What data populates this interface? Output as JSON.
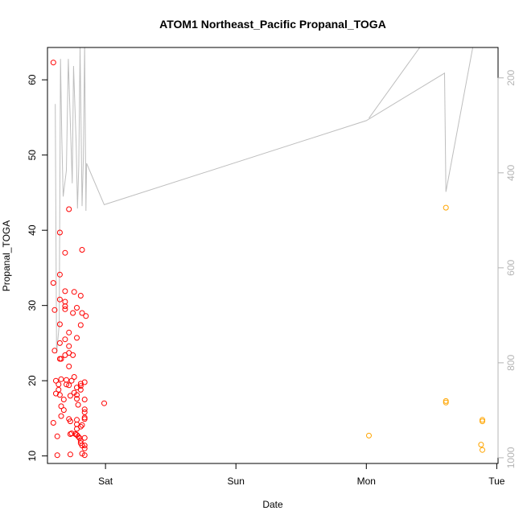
{
  "chart_data": {
    "type": "scatter",
    "title": "ATOM1 Northeast_Pacific Propanal_TOGA",
    "xlabel": "Date",
    "ylabel": "Propanal_TOGA",
    "x_ticks": [
      "Sat",
      "Sun",
      "Mon",
      "Tue"
    ],
    "x_range_days": [
      -0.445,
      3.01
    ],
    "y_left_range": [
      9.0,
      64.3
    ],
    "y_left_ticks": [
      10,
      20,
      30,
      40,
      50,
      60
    ],
    "y_right_ticks": [
      200,
      400,
      600,
      800,
      1000
    ],
    "y_right_range": [
      1012,
      136
    ],
    "y_right_reversed": true,
    "grid": false,
    "colors": {
      "series_1": "#ff0000",
      "series_2": "#ffa500",
      "pressure_line": "#bebebe",
      "axis": "#000000",
      "right_axis": "#b4b4b4"
    },
    "series": [
      {
        "color": "#ff0000",
        "points": [
          [
            -0.4,
            62.3
          ],
          [
            -0.4,
            33.0
          ],
          [
            -0.39,
            29.4
          ],
          [
            -0.39,
            24.0
          ],
          [
            -0.4,
            14.4
          ],
          [
            -0.38,
            20.0
          ],
          [
            -0.38,
            18.3
          ],
          [
            -0.37,
            12.6
          ],
          [
            -0.37,
            10.1
          ],
          [
            -0.36,
            18.8
          ],
          [
            -0.36,
            19.5
          ],
          [
            -0.35,
            22.9
          ],
          [
            -0.35,
            25.0
          ],
          [
            -0.35,
            27.5
          ],
          [
            -0.35,
            30.8
          ],
          [
            -0.35,
            34.1
          ],
          [
            -0.35,
            39.7
          ],
          [
            -0.35,
            18.1
          ],
          [
            -0.34,
            16.6
          ],
          [
            -0.34,
            15.3
          ],
          [
            -0.34,
            22.9
          ],
          [
            -0.34,
            20.2
          ],
          [
            -0.32,
            17.5
          ],
          [
            -0.32,
            16.1
          ],
          [
            -0.31,
            30.5
          ],
          [
            -0.31,
            29.5
          ],
          [
            -0.31,
            29.9
          ],
          [
            -0.31,
            31.9
          ],
          [
            -0.31,
            37.0
          ],
          [
            -0.31,
            25.5
          ],
          [
            -0.31,
            23.4
          ],
          [
            -0.3,
            20.1
          ],
          [
            -0.3,
            19.5
          ],
          [
            -0.28,
            42.8
          ],
          [
            -0.28,
            26.4
          ],
          [
            -0.28,
            24.6
          ],
          [
            -0.28,
            23.7
          ],
          [
            -0.28,
            21.9
          ],
          [
            -0.28,
            19.4
          ],
          [
            -0.27,
            18.0
          ],
          [
            -0.28,
            14.9
          ],
          [
            -0.27,
            14.6
          ],
          [
            -0.27,
            12.9
          ],
          [
            -0.27,
            10.2
          ],
          [
            -0.26,
            20.0
          ],
          [
            -0.26,
            13.0
          ],
          [
            -0.25,
            29.0
          ],
          [
            -0.25,
            23.4
          ],
          [
            -0.24,
            31.8
          ],
          [
            -0.24,
            20.5
          ],
          [
            -0.24,
            18.4
          ],
          [
            -0.23,
            12.9
          ],
          [
            -0.22,
            29.7
          ],
          [
            -0.22,
            25.7
          ],
          [
            -0.22,
            19.1
          ],
          [
            -0.22,
            18.1
          ],
          [
            -0.22,
            17.6
          ],
          [
            -0.22,
            14.8
          ],
          [
            -0.22,
            14.2
          ],
          [
            -0.22,
            13.6
          ],
          [
            -0.22,
            12.8
          ],
          [
            -0.21,
            16.8
          ],
          [
            -0.21,
            12.6
          ],
          [
            -0.2,
            12.4
          ],
          [
            -0.19,
            31.3
          ],
          [
            -0.19,
            27.4
          ],
          [
            -0.19,
            19.6
          ],
          [
            -0.19,
            19.3
          ],
          [
            -0.19,
            18.8
          ],
          [
            -0.19,
            13.9
          ],
          [
            -0.19,
            12.0
          ],
          [
            -0.19,
            11.7
          ],
          [
            -0.18,
            37.4
          ],
          [
            -0.18,
            29.0
          ],
          [
            -0.18,
            14.1
          ],
          [
            -0.18,
            11.4
          ],
          [
            -0.18,
            10.3
          ],
          [
            -0.16,
            19.8
          ],
          [
            -0.16,
            17.5
          ],
          [
            -0.16,
            16.2
          ],
          [
            -0.16,
            15.8
          ],
          [
            -0.16,
            15.1
          ],
          [
            -0.16,
            14.9
          ],
          [
            -0.16,
            12.4
          ],
          [
            -0.16,
            11.4
          ],
          [
            -0.16,
            11.0
          ],
          [
            -0.16,
            10.1
          ],
          [
            -0.15,
            28.6
          ],
          [
            -0.01,
            17.0
          ]
        ]
      },
      {
        "color": "#ffa500",
        "points": [
          [
            2.02,
            12.7
          ],
          [
            2.61,
            43.0
          ],
          [
            2.61,
            17.1
          ],
          [
            2.61,
            17.3
          ],
          [
            2.88,
            11.5
          ],
          [
            2.89,
            14.8
          ],
          [
            2.89,
            14.6
          ],
          [
            2.89,
            10.8
          ]
        ]
      }
    ],
    "pressure_series": {
      "color": "#bebebe",
      "segments": [
        [
          [
            -0.385,
            255
          ],
          [
            -0.375,
            780
          ],
          [
            -0.355,
            720
          ],
          [
            -0.345,
            160
          ],
          [
            -0.335,
            325
          ],
          [
            -0.325,
            450
          ],
          [
            -0.3,
            395
          ],
          [
            -0.285,
            160
          ],
          [
            -0.255,
            422
          ],
          [
            -0.245,
            175
          ],
          [
            -0.225,
            340
          ],
          [
            -0.215,
            475
          ],
          [
            -0.205,
            385
          ],
          [
            -0.195,
            135
          ],
          [
            -0.18,
            470
          ],
          [
            -0.17,
            370
          ],
          [
            -0.16,
            130
          ],
          [
            -0.15,
            480
          ],
          [
            -0.145,
            380
          ],
          [
            -0.01,
            467
          ],
          [
            2.0,
            290
          ],
          [
            2.6,
            190
          ],
          [
            2.61,
            440
          ],
          [
            2.82,
            130
          ],
          [
            2.825,
            120
          ]
        ],
        [
          [
            2.02,
            285
          ],
          [
            2.41,
            136
          ]
        ]
      ]
    }
  }
}
